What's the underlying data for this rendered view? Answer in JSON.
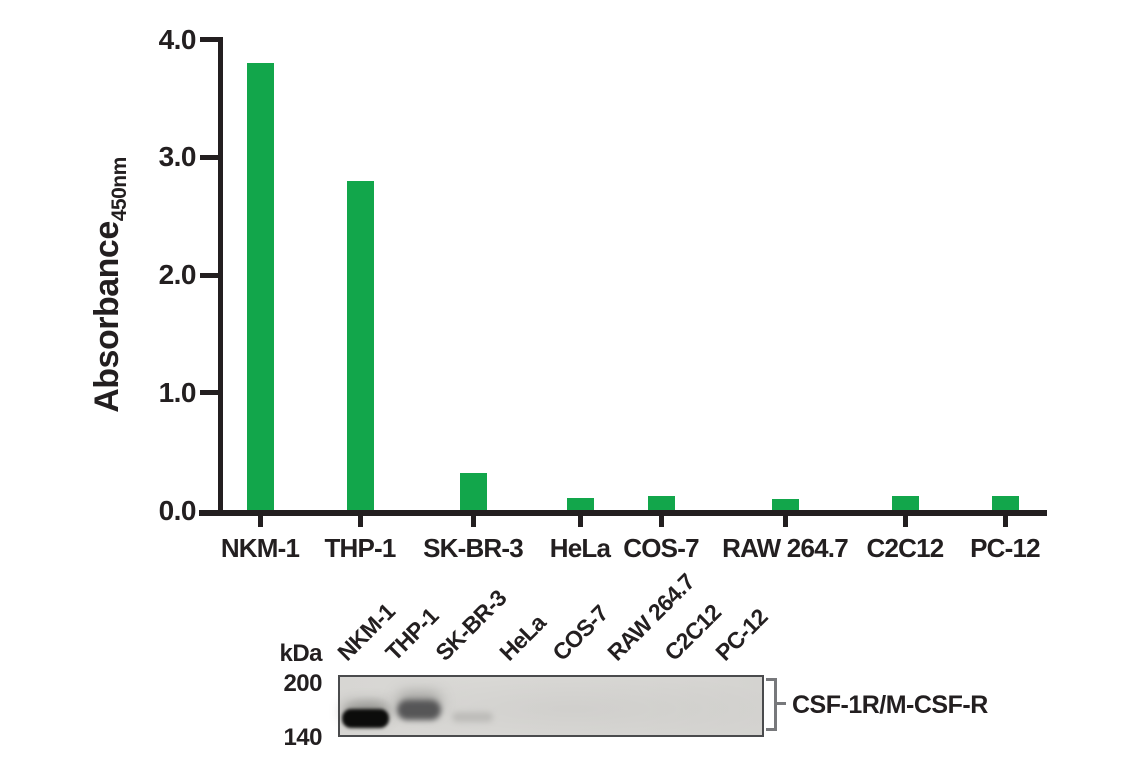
{
  "colors": {
    "bar_green": "#12a64b",
    "text_black": "#231f20",
    "blot_background": "#d8d7d4",
    "bracket_gray": "#77787b"
  },
  "chart_data": {
    "type": "bar",
    "title": "",
    "ylabel": "Absorbance",
    "ylabel_subscript": "450nm",
    "xlabel": "",
    "categories": [
      "NKM-1",
      "THP-1",
      "SK-BR-3",
      "HeLa",
      "COS-7",
      "RAW 264.7",
      "C2C12",
      "PC-12"
    ],
    "values": [
      3.8,
      2.79,
      0.31,
      0.1,
      0.12,
      0.09,
      0.12,
      0.12
    ],
    "ylim": [
      0,
      4
    ],
    "yticks": [
      0,
      1,
      2,
      3,
      4
    ],
    "ytick_labels": [
      "0.0",
      "1.0",
      "2.0",
      "3.0",
      "4.0"
    ],
    "grid": false,
    "legend": null,
    "bar_color": "#12a64b"
  },
  "blot": {
    "kda_label": "kDa",
    "markers": [
      {
        "label": "200"
      },
      {
        "label": "140"
      }
    ],
    "lane_labels": [
      "NKM-1",
      "THP-1",
      "SK-BR-3",
      "HeLa",
      "COS-7",
      "RAW 264.7",
      "C2C12",
      "PC-12"
    ],
    "band_label": "CSF-1R/M-CSF-R",
    "bands": [
      {
        "lane": "NKM-1",
        "intensity": "strong"
      },
      {
        "lane": "THP-1",
        "intensity": "medium"
      },
      {
        "lane": "SK-BR-3",
        "intensity": "faint"
      }
    ]
  }
}
